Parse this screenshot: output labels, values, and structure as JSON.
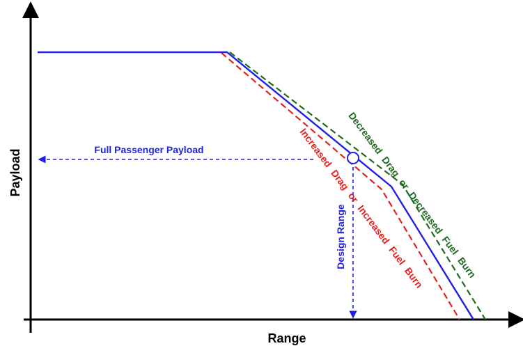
{
  "axes": {
    "x_label": "Range",
    "y_label": "Payload"
  },
  "annotations": {
    "full_passenger_payload": "Full Passenger Payload",
    "design_range": "Design Range",
    "increased_drag": "Increased Drag or Increased Fuel Burn",
    "decreased_drag": "Decreased Drag or Decreased Fuel Burn"
  },
  "colors": {
    "baseline": "#1f1fe6",
    "increased": "#e62020",
    "decreased": "#1f6a1f",
    "axis": "#000000"
  }
}
